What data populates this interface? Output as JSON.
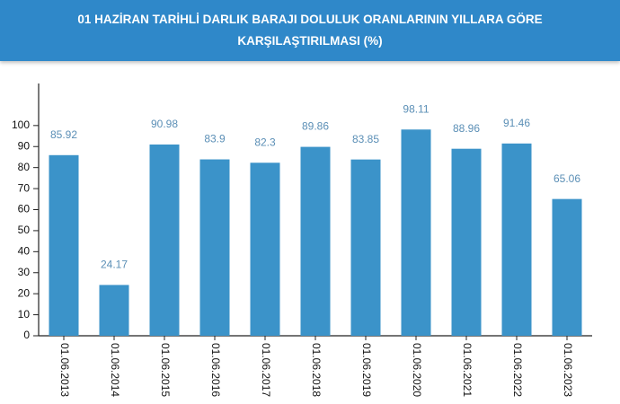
{
  "chart_data": {
    "type": "bar",
    "title": "01 HAZİRAN TARİHLİ DARLIK BARAJI DOLULUK ORANLARININ YILLARA GÖRE KARŞILAŞTIRILMASI (%)",
    "categories": [
      "01.06.2013",
      "01.06.2014",
      "01.06.2015",
      "01.06.2016",
      "01.06.2017",
      "01.06.2018",
      "01.06.2019",
      "01.06.2020",
      "01.06.2021",
      "01.06.2022",
      "01.06.2023"
    ],
    "values": [
      85.92,
      24.17,
      90.98,
      83.9,
      82.3,
      89.86,
      83.85,
      98.11,
      88.96,
      91.46,
      65.06
    ],
    "color": "#3b93c9",
    "ylim": [
      0,
      120
    ],
    "yticks": [
      0,
      10,
      20,
      30,
      40,
      50,
      60,
      70,
      80,
      90,
      100
    ]
  }
}
